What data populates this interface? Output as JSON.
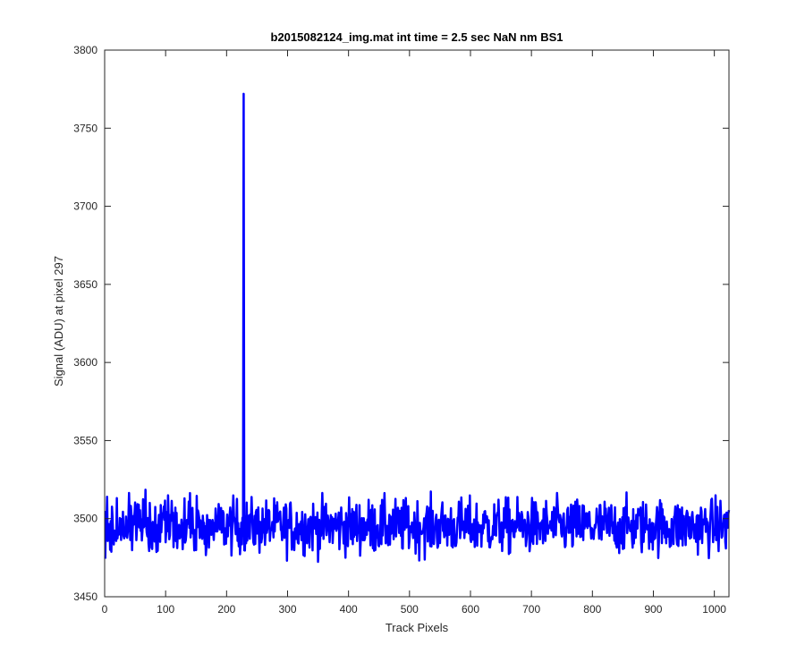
{
  "chart_data": {
    "type": "line",
    "title": "b2015082124_img.mat int time = 2.5 sec  NaN nm BS1",
    "xlabel": "Track Pixels",
    "ylabel": "Signal (ADU) at pixel 297",
    "xlim": [
      0,
      1024
    ],
    "ylim": [
      3450,
      3800
    ],
    "xticks": [
      0,
      100,
      200,
      300,
      400,
      500,
      600,
      700,
      800,
      900,
      1000
    ],
    "yticks": [
      3450,
      3500,
      3550,
      3600,
      3650,
      3700,
      3750,
      3800
    ],
    "grid": false,
    "box": true,
    "series": [
      {
        "color": "#0000ff",
        "line_width": 2.5,
        "x_start": 1,
        "x_step": 1,
        "n_points": 1024,
        "baseline_mean": 3495,
        "noise_range": [
          3466,
          3526
        ],
        "spike": {
          "x": 228,
          "y": 3772
        }
      }
    ]
  }
}
